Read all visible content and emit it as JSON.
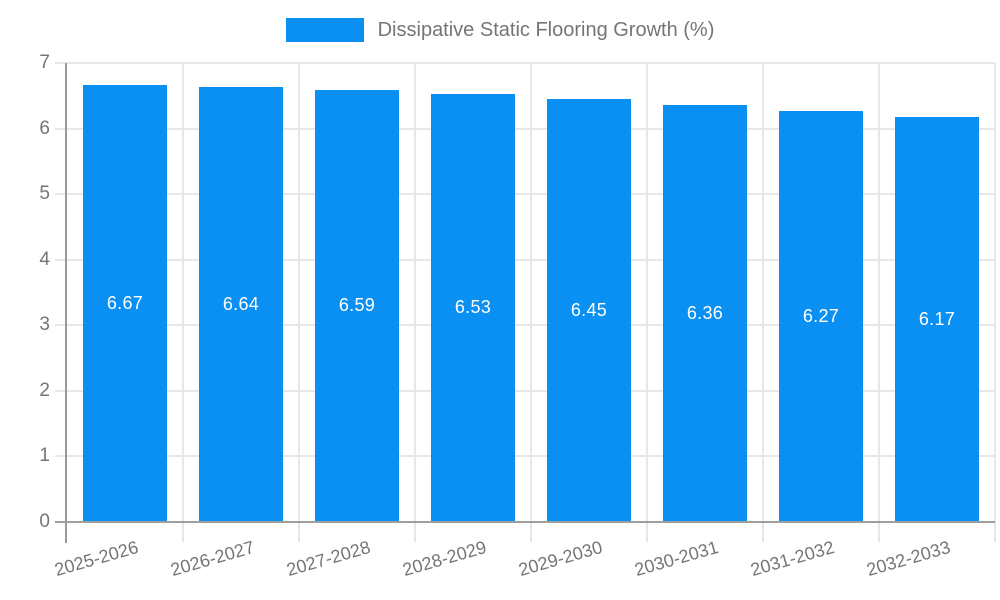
{
  "legend": {
    "label": "Dissipative Static Flooring Growth (%)"
  },
  "colors": {
    "bar": "#0a8ff2",
    "grid": "#e7e7e7",
    "y_axis_line": "#9a9a9a",
    "baseline": "#9e9e9e",
    "tick_text": "#757575",
    "value_label": "#ffffff",
    "background": "#ffffff"
  },
  "chart_data": {
    "type": "bar",
    "title": "Dissipative Static Flooring Growth (%)",
    "categories": [
      "2025-2026",
      "2026-2027",
      "2027-2028",
      "2028-2029",
      "2029-2030",
      "2030-2031",
      "2031-2032",
      "2032-2033"
    ],
    "values": [
      6.67,
      6.64,
      6.59,
      6.53,
      6.45,
      6.36,
      6.27,
      6.17
    ],
    "value_labels": [
      "6.67",
      "6.64",
      "6.59",
      "6.53",
      "6.45",
      "6.36",
      "6.27",
      "6.17"
    ],
    "xlabel": "",
    "ylabel": "",
    "ylim": [
      0,
      7
    ],
    "yticks": [
      0,
      1,
      2,
      3,
      4,
      5,
      6,
      7
    ],
    "grid": true,
    "legend_position": "top-center",
    "value_label_position": "inside-center",
    "x_label_rotation_deg": -16
  }
}
